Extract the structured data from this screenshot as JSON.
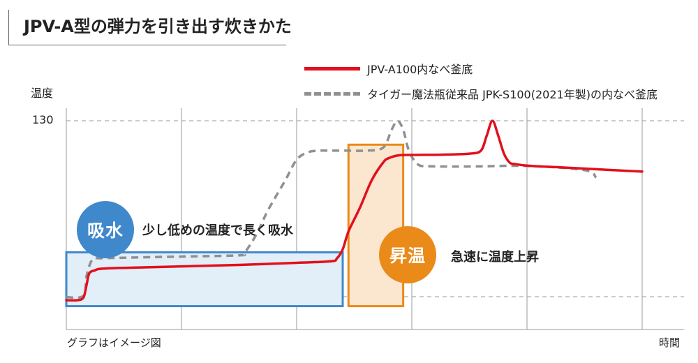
{
  "title": "JPV-A型の弾力を引き出す炊きかた",
  "legend": [
    {
      "label": "JPV-A100内なべ釜底",
      "color": "#e2101c",
      "style": "solid"
    },
    {
      "label": "タイガー魔法瓶従来品 JPK-S100(2021年製)の内なべ釜底",
      "color": "#909090",
      "style": "dashed"
    }
  ],
  "axes": {
    "ylabel": "温度",
    "ytick": "130",
    "xlabel": "時間",
    "xnote": "グラフはイメージ図"
  },
  "stages": [
    {
      "badge": "吸水",
      "description": "少し低めの温度で長く吸水",
      "color": "#3f88cc",
      "fill": "#e2eef8"
    },
    {
      "badge": "昇温",
      "description": "急速に温度上昇",
      "color": "#ea8a18",
      "fill": "#fbe6d0"
    }
  ],
  "chart_data": {
    "type": "line",
    "xlabel": "時間",
    "ylabel": "温度",
    "y_ticks": [
      130
    ],
    "ylim": [
      60,
      135
    ],
    "xlim": [
      0,
      100
    ],
    "grid": "vertical lines, dashed horizontal reference lines",
    "series": [
      {
        "name": "JPV-A100内なべ釜底",
        "color": "#e2101c",
        "style": "solid",
        "x": [
          0,
          2,
          3,
          3.5,
          4,
          5,
          6,
          10,
          20,
          30,
          40,
          46,
          47,
          48,
          49,
          51,
          53,
          55,
          56,
          58,
          62,
          66,
          70,
          72,
          73,
          74,
          75,
          76,
          77,
          78,
          80,
          85,
          90,
          95,
          100
        ],
        "y": [
          70,
          70,
          71,
          75,
          79,
          80,
          80.5,
          80.8,
          81.3,
          81.8,
          82.5,
          83,
          84,
          87,
          93,
          101,
          110,
          116,
          117.5,
          118.5,
          118.6,
          118.7,
          119,
          120,
          125,
          130,
          125,
          119,
          116,
          115.5,
          115,
          114.5,
          114,
          113.5,
          113
        ]
      },
      {
        "name": "タイガー魔法瓶従来品 JPK-S100(2021年製)の内なべ釜底",
        "color": "#909090",
        "style": "dashed",
        "x": [
          0,
          3,
          3.5,
          4.5,
          6,
          10,
          20,
          30,
          31,
          33,
          35,
          38,
          40,
          42,
          44,
          46,
          49,
          52,
          55,
          56.5,
          57.5,
          58.5,
          59.5,
          61,
          63,
          70,
          80,
          90,
          92
        ],
        "y": [
          71,
          71.5,
          78,
          83.5,
          84,
          84.2,
          84.6,
          85,
          86,
          92,
          100,
          110,
          117,
          119.5,
          120,
          120,
          120,
          120,
          121,
          127,
          130,
          127,
          120,
          115.5,
          114.8,
          114.7,
          114.9,
          113.5,
          111
        ]
      }
    ],
    "annotations": [
      {
        "label": "吸水",
        "text": "少し低めの温度で長く吸水",
        "x_range": [
          0,
          48
        ],
        "y_range": [
          68,
          86
        ]
      },
      {
        "label": "昇温",
        "text": "急速に温度上昇",
        "x_range": [
          49,
          58.5
        ],
        "y_range": [
          68,
          122
        ]
      }
    ]
  }
}
